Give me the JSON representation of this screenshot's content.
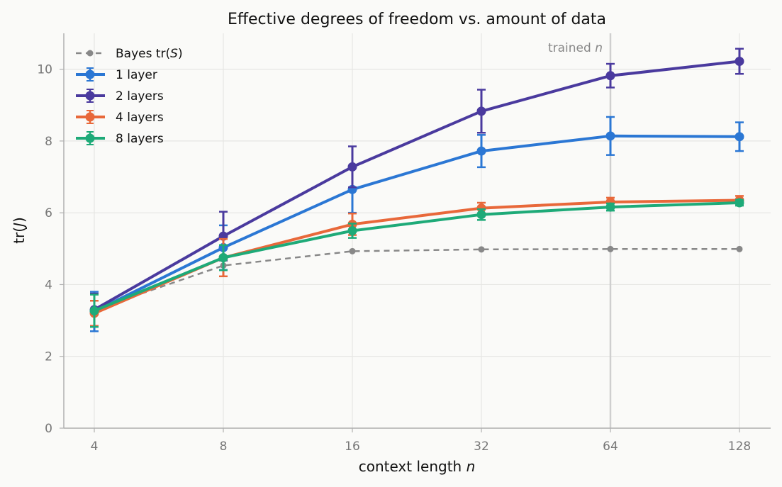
{
  "chart_data": {
    "type": "line",
    "title": "Effective degrees of freedom vs. amount of data",
    "xlabel_prefix": "context length ",
    "xlabel_var": "n",
    "ylabel_prefix": "tr(",
    "ylabel_var": "J",
    "ylabel_suffix": ")",
    "x_scale": "log2",
    "x": [
      4,
      8,
      16,
      32,
      64,
      128
    ],
    "x_tick_labels": [
      "4",
      "8",
      "16",
      "32",
      "64",
      "128"
    ],
    "ylim": [
      0,
      11
    ],
    "y_ticks": [
      0,
      2,
      4,
      6,
      8,
      10
    ],
    "grid": true,
    "legend_position": "top-left",
    "annotation": {
      "text_prefix": "trained ",
      "text_var": "n",
      "x": 64
    },
    "series": [
      {
        "name_prefix": "Bayes tr(",
        "name_var": "S",
        "name_suffix": ")",
        "color": "#888888",
        "style": "dashed",
        "errorbars": false,
        "values": [
          3.3,
          4.53,
          4.93,
          4.98,
          4.99,
          4.99
        ]
      },
      {
        "name_prefix": "1 layer",
        "color": "#2b77d4",
        "style": "solid",
        "errorbars": true,
        "values": [
          3.25,
          5.03,
          6.65,
          7.72,
          8.14,
          8.12
        ],
        "errors": [
          0.55,
          0.62,
          0.65,
          0.45,
          0.53,
          0.4
        ]
      },
      {
        "name_prefix": "2 layers",
        "color": "#4a3a9e",
        "style": "solid",
        "errorbars": true,
        "values": [
          3.3,
          5.35,
          7.28,
          8.83,
          9.82,
          10.22
        ],
        "errors": [
          0.45,
          0.68,
          0.57,
          0.6,
          0.33,
          0.35
        ]
      },
      {
        "name_prefix": "4 layers",
        "color": "#e8683a",
        "style": "solid",
        "errorbars": true,
        "values": [
          3.2,
          4.75,
          5.68,
          6.13,
          6.3,
          6.35
        ],
        "errors": [
          0.35,
          0.52,
          0.3,
          0.15,
          0.12,
          0.12
        ]
      },
      {
        "name_prefix": "8 layers",
        "color": "#1eaa78",
        "style": "solid",
        "errorbars": true,
        "values": [
          3.27,
          4.75,
          5.5,
          5.95,
          6.16,
          6.28
        ],
        "errors": [
          0.45,
          0.35,
          0.2,
          0.15,
          0.1,
          0.08
        ]
      }
    ]
  }
}
